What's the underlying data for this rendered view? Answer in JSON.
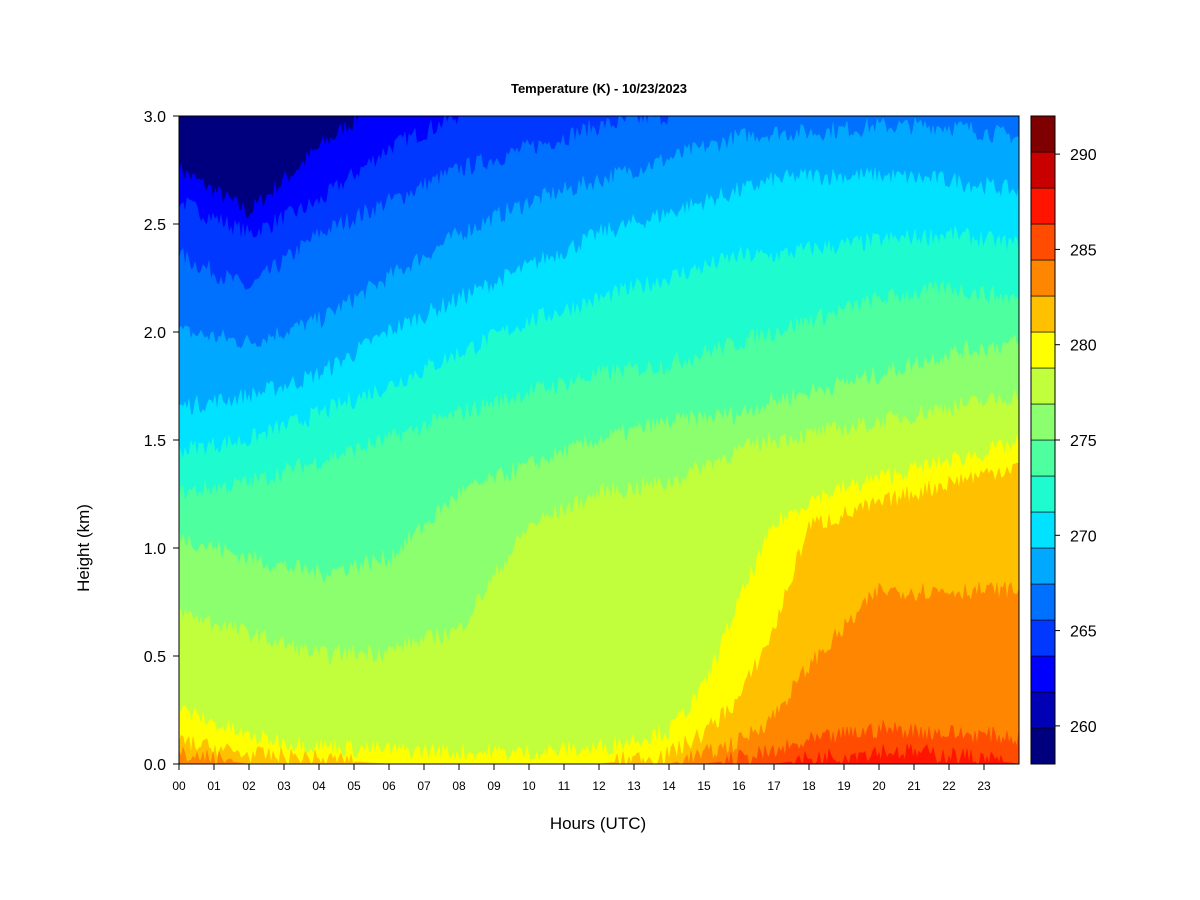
{
  "chart_data": {
    "type": "heatmap",
    "title": "Temperature (K) - 10/23/2023",
    "xlabel": "Hours (UTC)",
    "ylabel": "Height (km)",
    "x_ticks": [
      "00",
      "01",
      "02",
      "03",
      "04",
      "05",
      "06",
      "07",
      "08",
      "09",
      "10",
      "11",
      "12",
      "13",
      "14",
      "15",
      "16",
      "17",
      "18",
      "19",
      "20",
      "21",
      "22",
      "23"
    ],
    "y_ticks": [
      "0.0",
      "0.5",
      "1.0",
      "1.5",
      "2.0",
      "2.5",
      "3.0"
    ],
    "xlim": [
      0,
      24
    ],
    "ylim": [
      0,
      3
    ],
    "colorbar": {
      "min": 258,
      "max": 292,
      "step": 2,
      "tick_values": [
        260,
        265,
        270,
        275,
        280,
        285,
        290
      ],
      "tick_labels": [
        "260",
        "265",
        "270",
        "275",
        "280",
        "285",
        "290"
      ],
      "colors": [
        "#00007f",
        "#0000b5",
        "#0000ff",
        "#0038ff",
        "#0070ff",
        "#00a9ff",
        "#00e2ff",
        "#1dfbcf",
        "#4dff9e",
        "#8bff6d",
        "#c1ff3c",
        "#ffff00",
        "#ffc000",
        "#ff8600",
        "#ff4c00",
        "#ff1400",
        "#c80000",
        "#7f0000"
      ]
    },
    "grid": false,
    "legend": "right colorbar",
    "contour_boundaries": {
      "hours": [
        0,
        2,
        4,
        6,
        8,
        10,
        12,
        14,
        15,
        16,
        17,
        18,
        20,
        22,
        24
      ],
      "levels": {
        "262": [
          2.75,
          2.55,
          2.85,
          3.1,
          3.2,
          3.2,
          3.2,
          3.2,
          3.2,
          3.2,
          3.2,
          3.2,
          3.2,
          3.2,
          3.2
        ],
        "264": [
          2.6,
          2.45,
          2.6,
          2.85,
          3.0,
          3.1,
          3.2,
          3.2,
          3.2,
          3.2,
          3.2,
          3.2,
          3.2,
          3.2,
          3.2
        ],
        "266": [
          2.35,
          2.2,
          2.45,
          2.6,
          2.75,
          2.85,
          2.95,
          3.0,
          3.05,
          3.1,
          3.15,
          3.2,
          3.2,
          3.2,
          3.2
        ],
        "268": [
          2.0,
          1.95,
          2.05,
          2.25,
          2.45,
          2.6,
          2.7,
          2.8,
          2.85,
          2.9,
          2.92,
          2.92,
          2.95,
          2.95,
          2.9
        ],
        "270": [
          1.65,
          1.7,
          1.8,
          2.0,
          2.15,
          2.3,
          2.45,
          2.55,
          2.6,
          2.65,
          2.7,
          2.72,
          2.72,
          2.7,
          2.65
        ],
        "272": [
          1.45,
          1.5,
          1.62,
          1.75,
          1.9,
          2.05,
          2.15,
          2.25,
          2.3,
          2.35,
          2.35,
          2.38,
          2.42,
          2.45,
          2.4
        ],
        "274": [
          1.25,
          1.3,
          1.4,
          1.5,
          1.62,
          1.72,
          1.8,
          1.85,
          1.9,
          1.95,
          2.0,
          2.05,
          2.15,
          2.2,
          2.15
        ],
        "276": [
          1.05,
          0.95,
          0.88,
          0.95,
          1.25,
          1.38,
          1.5,
          1.58,
          1.6,
          1.62,
          1.68,
          1.72,
          1.8,
          1.9,
          1.95
        ],
        "278": [
          0.7,
          0.6,
          0.5,
          0.52,
          0.62,
          1.1,
          1.25,
          1.3,
          1.38,
          1.45,
          1.5,
          1.52,
          1.58,
          1.65,
          1.7
        ],
        "280": [
          0.25,
          0.12,
          0.08,
          0.06,
          0.05,
          0.05,
          0.07,
          0.15,
          0.35,
          0.75,
          1.1,
          1.22,
          1.32,
          1.4,
          1.48
        ],
        "282": [
          0.1,
          0.04,
          0.02,
          0.0,
          0.0,
          0.0,
          0.0,
          0.04,
          0.14,
          0.3,
          0.62,
          1.1,
          1.2,
          1.3,
          1.38
        ],
        "284": [
          0.04,
          0.0,
          0.0,
          0.0,
          0.0,
          0.0,
          0.0,
          0.0,
          0.04,
          0.1,
          0.22,
          0.45,
          0.8,
          0.8,
          0.8
        ],
        "286": [
          0.0,
          0.0,
          0.0,
          0.0,
          0.0,
          0.0,
          0.0,
          0.0,
          0.0,
          0.02,
          0.05,
          0.1,
          0.16,
          0.14,
          0.12
        ],
        "288": [
          0.0,
          0.0,
          0.0,
          0.0,
          0.0,
          0.0,
          0.0,
          0.0,
          0.0,
          0.0,
          0.0,
          0.02,
          0.06,
          0.04,
          0.0
        ]
      }
    }
  }
}
